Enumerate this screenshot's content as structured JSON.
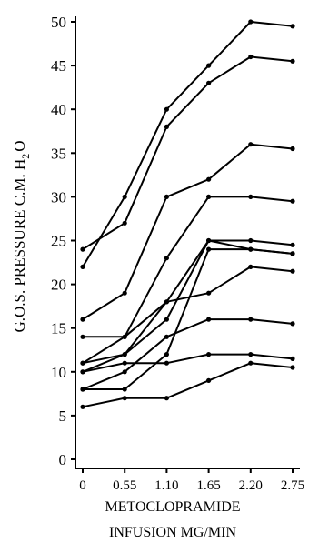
{
  "chart_data": {
    "type": "line",
    "title": "",
    "ylabel": "G.O.S. PRESSURE C.M. H",
    "ylabel_sub": "2",
    "ylabel_tail": "O",
    "xlabel_line1": "METOCLOPRAMIDE",
    "xlabel_line2": "INFUSION MG/MIN",
    "x": [
      0,
      0.55,
      1.1,
      1.65,
      2.2,
      2.75
    ],
    "x_tick_labels": [
      "0",
      "0.55",
      "1.10",
      "1.65",
      "2.20",
      "2.75"
    ],
    "y_ticks": [
      0,
      5,
      10,
      15,
      20,
      25,
      30,
      35,
      40,
      45,
      50
    ],
    "y_tick_labels": [
      "0",
      "5",
      "10",
      "15",
      "20",
      "25",
      "30",
      "35",
      "40",
      "45",
      "50"
    ],
    "ylim": [
      0,
      50
    ],
    "grid": false,
    "series": [
      {
        "values": [
          22,
          30,
          40,
          45,
          50,
          49.5
        ]
      },
      {
        "values": [
          24,
          27,
          38,
          43,
          46,
          45.5
        ]
      },
      {
        "values": [
          16,
          19,
          30,
          32,
          36,
          35.5
        ]
      },
      {
        "values": [
          14,
          14,
          23,
          30,
          30,
          29.5
        ]
      },
      {
        "values": [
          11,
          14,
          18,
          25,
          25,
          24.5
        ]
      },
      {
        "values": [
          10,
          12,
          16,
          25,
          24,
          23.5
        ]
      },
      {
        "values": [
          11,
          12,
          18,
          19,
          22,
          21.5
        ]
      },
      {
        "values": [
          8,
          10,
          14,
          16,
          16,
          15.5
        ]
      },
      {
        "values": [
          8,
          8,
          12,
          24,
          24,
          23.5
        ]
      },
      {
        "values": [
          10,
          11,
          11,
          12,
          12,
          11.5
        ]
      },
      {
        "values": [
          6,
          7,
          7,
          9,
          11,
          10.5
        ]
      }
    ]
  }
}
